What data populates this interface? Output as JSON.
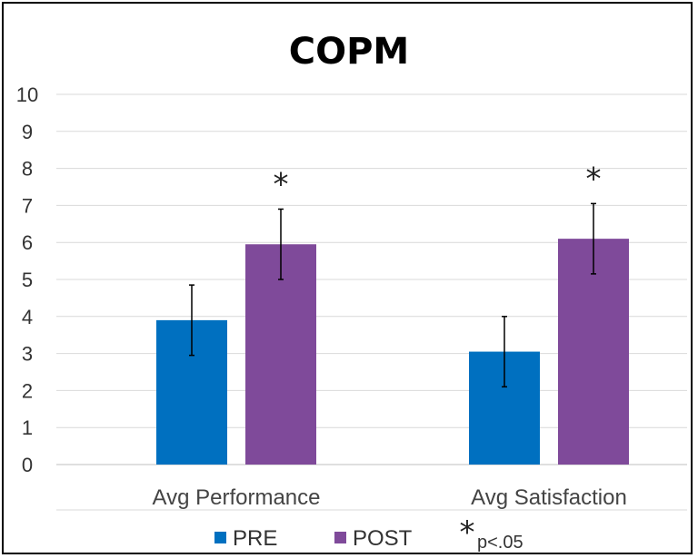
{
  "chart_data": {
    "type": "bar",
    "title": "COPM",
    "categories": [
      "Avg Performance",
      "Avg Satisfaction"
    ],
    "series": [
      {
        "name": "PRE",
        "color": "#0070C0",
        "values": [
          3.9,
          3.05
        ],
        "error": [
          0.95,
          0.95
        ]
      },
      {
        "name": "POST",
        "color": "#7F4A9A",
        "values": [
          5.95,
          6.1
        ],
        "error": [
          0.95,
          0.95
        ]
      }
    ],
    "significance": [
      true,
      true
    ],
    "significance_marker": "*",
    "significance_label": "p<.05",
    "ylim": [
      0,
      10
    ],
    "yticks": [
      "0",
      "1",
      "2",
      "3",
      "4",
      "5",
      "6",
      "7",
      "8",
      "9",
      "10"
    ],
    "grid": true,
    "legend": "bottom"
  }
}
